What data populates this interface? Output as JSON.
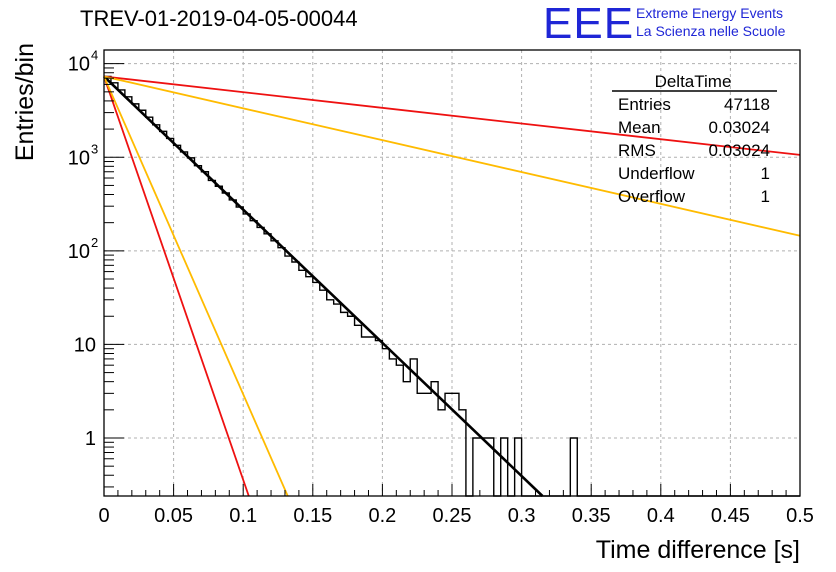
{
  "title": "TREV-01-2019-04-05-00044",
  "logo": {
    "mark": "EEE",
    "line1": "Extreme Energy Events",
    "line2": "La Scienza nelle Scuole"
  },
  "stats": {
    "name": "DeltaTime",
    "rows": [
      {
        "label": "Entries",
        "value": "47118"
      },
      {
        "label": "Mean",
        "value": "0.03024"
      },
      {
        "label": "RMS",
        "value": "0.03024"
      },
      {
        "label": "Underflow",
        "value": "1"
      },
      {
        "label": "Overflow",
        "value": "1"
      }
    ]
  },
  "chart_data": {
    "type": "line",
    "xlabel": "Time difference [s]",
    "ylabel": "Entries/bin",
    "xlim": [
      0,
      0.5
    ],
    "ylim": [
      0.24,
      14000
    ],
    "yscale": "log",
    "grid": true,
    "xticks": [
      "0",
      "0.05",
      "0.1",
      "0.15",
      "0.2",
      "0.25",
      "0.3",
      "0.35",
      "0.4",
      "0.45",
      "0.5"
    ],
    "yticks": [
      {
        "value": 1,
        "base": "1",
        "exp": ""
      },
      {
        "value": 10,
        "base": "10",
        "exp": ""
      },
      {
        "value": 100,
        "base": "10",
        "exp": "2"
      },
      {
        "value": 1000,
        "base": "10",
        "exp": "3"
      },
      {
        "value": 10000,
        "base": "10",
        "exp": "4"
      }
    ],
    "histogram": {
      "bin_width": 0.005,
      "values": [
        7300,
        6240,
        5240,
        4430,
        3720,
        3180,
        2680,
        2220,
        1890,
        1590,
        1340,
        1140,
        985,
        812,
        700,
        565,
        490,
        415,
        350,
        294,
        248,
        210,
        178,
        152,
        128,
        108,
        88,
        76,
        62,
        53,
        46,
        38,
        30,
        27,
        22,
        20,
        16,
        12,
        12,
        11,
        9,
        7,
        6,
        4,
        7,
        3,
        3,
        4,
        2,
        3,
        3,
        2,
        0,
        1,
        1,
        1,
        0,
        1,
        0,
        1,
        0,
        0,
        0,
        0,
        0,
        0,
        0,
        1,
        0,
        0,
        0,
        0,
        0,
        0,
        0,
        0,
        0,
        0,
        0,
        0,
        0,
        0,
        0,
        0,
        0,
        0,
        0,
        0,
        0,
        0,
        0,
        0,
        0,
        0,
        0,
        0,
        0,
        0,
        0,
        0
      ]
    },
    "series": [
      {
        "color": "#000000",
        "x": [
          0,
          0.315
        ],
        "y": [
          7300,
          0.24
        ]
      },
      {
        "color": "#ee1111",
        "x": [
          0,
          0.5
        ],
        "y": [
          7300,
          1060
        ]
      },
      {
        "color": "#ffbb00",
        "x": [
          0,
          0.5
        ],
        "y": [
          7300,
          145
        ]
      },
      {
        "color": "#ee1111",
        "x": [
          0,
          0.104
        ],
        "y": [
          7300,
          0.24
        ]
      },
      {
        "color": "#ffbb00",
        "x": [
          0,
          0.132
        ],
        "y": [
          7300,
          0.24
        ]
      }
    ]
  }
}
